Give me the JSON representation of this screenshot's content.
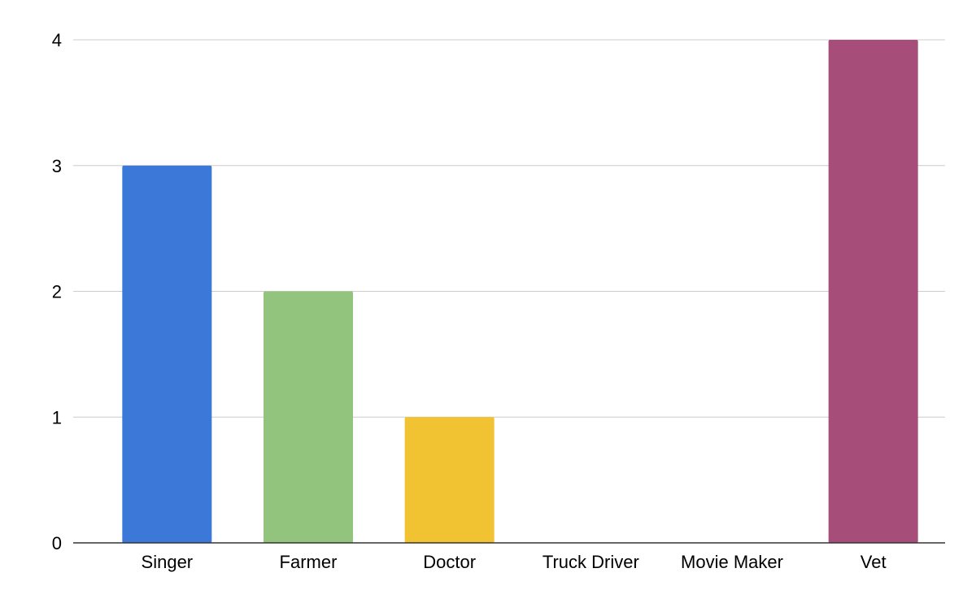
{
  "chart_data": {
    "type": "bar",
    "title": "",
    "xlabel": "",
    "ylabel": "",
    "categories": [
      "Singer",
      "Farmer",
      "Doctor",
      "Truck Driver",
      "Movie Maker",
      "Vet"
    ],
    "values": [
      3,
      2,
      1,
      0,
      0,
      4
    ],
    "colors": [
      "#3c78d8",
      "#93c47d",
      "#f1c232",
      "#e06666",
      "#8e7cc3",
      "#a64d79"
    ],
    "ylim": [
      0,
      4
    ],
    "yticks": [
      0,
      1,
      2,
      3,
      4
    ],
    "grid": true,
    "legend": "none"
  }
}
